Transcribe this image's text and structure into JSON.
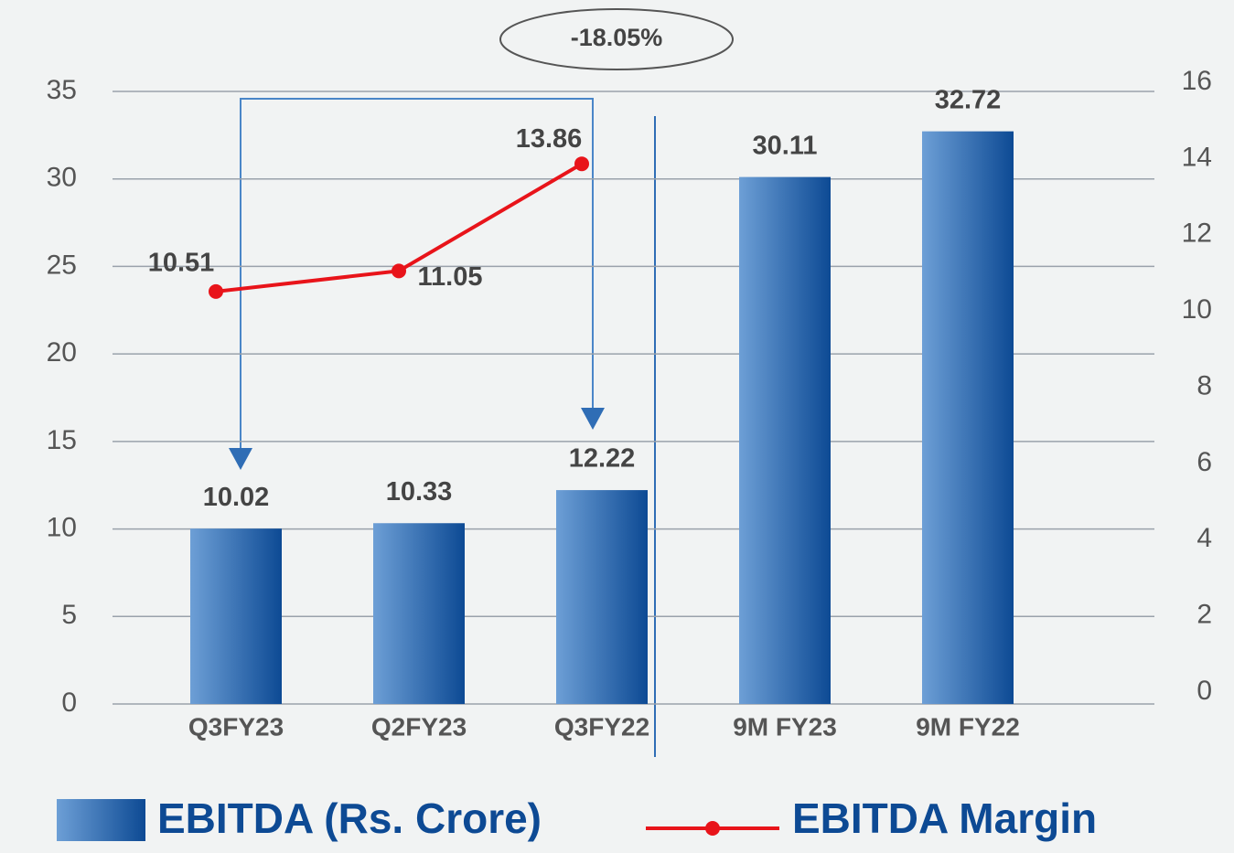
{
  "chart_data": {
    "type": "bar",
    "annotation": "-18.05%",
    "categories": [
      "Q3FY23",
      "Q2FY23",
      "Q3FY22",
      "9M FY23",
      "9M FY22"
    ],
    "series": [
      {
        "name": "EBITDA (Rs. Crore)",
        "color": "#0d4a94",
        "values": [
          10.02,
          10.33,
          12.22,
          30.11,
          32.72
        ]
      },
      {
        "name": "EBITDA Margin",
        "color": "#e8141a",
        "axis": "y2",
        "values": [
          10.51,
          11.05,
          13.86,
          null,
          null
        ]
      }
    ],
    "ylim": [
      0,
      35
    ],
    "yticks": [
      0,
      5,
      10,
      15,
      20,
      25,
      30,
      35
    ],
    "y2lim": [
      0,
      16
    ],
    "y2ticks": [
      0,
      2,
      4,
      6,
      8,
      10,
      12,
      14,
      16
    ],
    "grid": true
  }
}
